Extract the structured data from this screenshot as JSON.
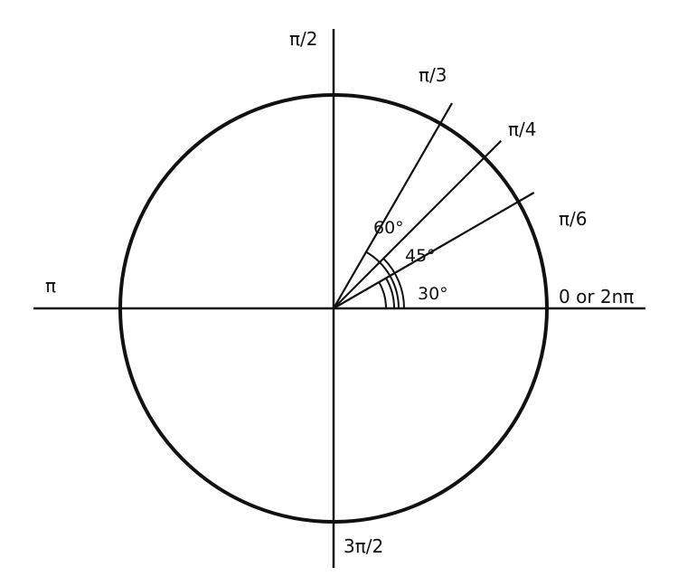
{
  "diagram": {
    "line_color": "#111111",
    "background": "#ffffff",
    "axis_labels": {
      "top": "π/2",
      "left": "π",
      "right": "0 or 2nπ",
      "bottom": "3π/2"
    },
    "rays": [
      {
        "angle_deg": 30,
        "label": "π/6",
        "arc_label": "30°"
      },
      {
        "angle_deg": 45,
        "label": "π/4",
        "arc_label": "45°"
      },
      {
        "angle_deg": 60,
        "label": "π/3",
        "arc_label": "60°"
      }
    ]
  }
}
